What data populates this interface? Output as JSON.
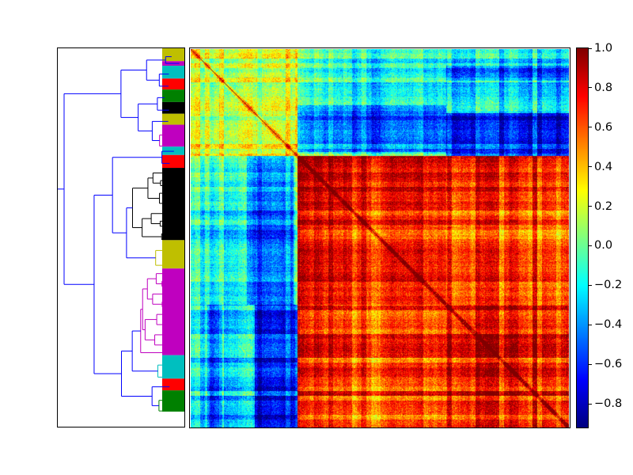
{
  "chart_data": {
    "type": "heatmap",
    "title": "",
    "xlabel": "",
    "ylabel": "",
    "matrix_kind": "clustered correlation matrix with row dendrogram",
    "colormap": "jet",
    "colorbar": {
      "range": [
        -0.92,
        1.0
      ],
      "ticks": [
        1.0,
        0.8,
        0.6,
        0.4,
        0.2,
        0.0,
        -0.2,
        -0.4,
        -0.6,
        -0.8
      ],
      "tick_labels": [
        "1.0",
        "0.8",
        "0.6",
        "0.4",
        "0.2",
        "0.0",
        "−0.2",
        "−0.4",
        "−0.6",
        "−0.8"
      ]
    },
    "grid": false,
    "legend": "none",
    "diagonal_value": 1.0,
    "n_items_approx": 480,
    "dendrogram_clusters": [
      {
        "color": "#bfbf00",
        "size_fraction": 0.034
      },
      {
        "color": "#bf00bf",
        "size_fraction": 0.012
      },
      {
        "color": "#00bfbf",
        "size_fraction": 0.034
      },
      {
        "color": "#ff0000",
        "size_fraction": 0.029
      },
      {
        "color": "#008000",
        "size_fraction": 0.033
      },
      {
        "color": "#000000",
        "size_fraction": 0.031
      },
      {
        "color": "#bfbf00",
        "size_fraction": 0.029
      },
      {
        "color": "#bf00bf",
        "size_fraction": 0.058
      },
      {
        "color": "#00bfbf",
        "size_fraction": 0.022
      },
      {
        "color": "#ff0000",
        "size_fraction": 0.034
      },
      {
        "color": "#000000",
        "size_fraction": 0.191
      },
      {
        "color": "#bfbf00",
        "size_fraction": 0.075
      },
      {
        "color": "#bf00bf",
        "size_fraction": 0.229
      },
      {
        "color": "#00bfbf",
        "size_fraction": 0.062
      },
      {
        "color": "#ff0000",
        "size_fraction": 0.031
      },
      {
        "color": "#008000",
        "size_fraction": 0.056
      }
    ],
    "block_correlations": {
      "group_boundaries_fraction": [
        0.0,
        0.283,
        0.676,
        1.0
      ],
      "mean_correlation_by_group": [
        [
          0.15,
          -0.15,
          -0.25
        ],
        [
          -0.15,
          0.75,
          0.65
        ],
        [
          -0.25,
          0.65,
          0.75
        ]
      ]
    },
    "colors": {
      "link_color_above_threshold": "#0000ff",
      "axes_edge": "#000000"
    }
  }
}
